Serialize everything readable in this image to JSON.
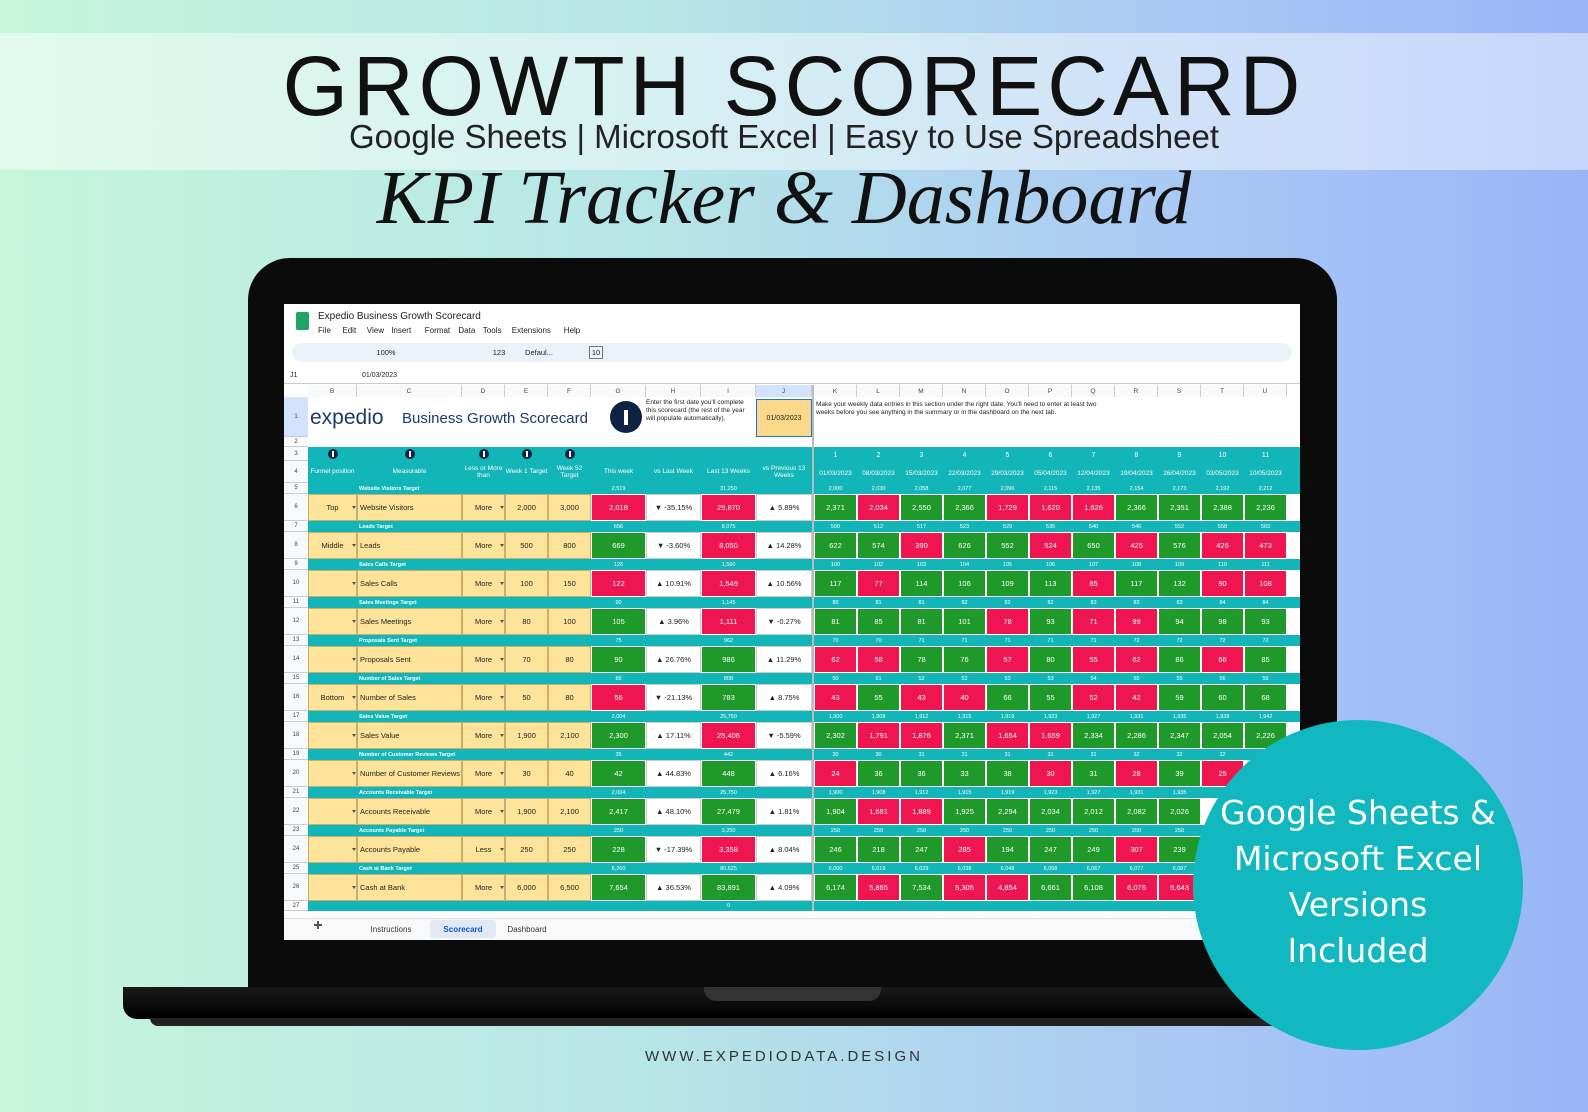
{
  "banner": {
    "title": "GROWTH SCORECARD",
    "subtitle": "Google Sheets | Microsoft Excel | Easy to Use Spreadsheet",
    "script_title": "KPI Tracker & Dashboard",
    "badge_lines": [
      "Google Sheets &",
      "Microsoft Excel",
      "Versions",
      "Included"
    ],
    "footer": "WWW.EXPEDIODATA.DESIGN"
  },
  "sheet": {
    "doc_title": "Expedio Business Growth Scorecard",
    "menu": [
      "File",
      "Edit",
      "View",
      "Insert",
      "Format",
      "Data",
      "Tools",
      "Extensions",
      "Help"
    ],
    "toolbar": [
      "100%",
      "123",
      "Defaul...",
      "10"
    ],
    "name_box": "J1",
    "formula": "01/03/2023",
    "column_letters": [
      "B",
      "C",
      "D",
      "E",
      "F",
      "G",
      "H",
      "I",
      "J",
      "K",
      "L",
      "M",
      "N",
      "O",
      "P",
      "Q",
      "R",
      "S",
      "T",
      "U"
    ],
    "row_numbers": [
      "1",
      "2",
      "3",
      "4",
      "5",
      "6",
      "7",
      "8",
      "9",
      "10",
      "11",
      "12",
      "13",
      "14",
      "15",
      "16",
      "17",
      "18",
      "19",
      "20",
      "21",
      "22",
      "23",
      "24",
      "25",
      "26",
      "27"
    ],
    "logo_text": "expedio",
    "logo_title": "Business Growth Scorecard",
    "info_note": "Enter the first date you'll complete this scorecard (the rest of the year will populate automatically).",
    "start_date": "01/03/2023",
    "entry_note": "Make your weekly data entries in this section under the right date. You'll need to enter at least two weeks before you see anything in the summary or in the dashboard on the next tab.",
    "headers": [
      "Funnel position",
      "Measurable",
      "Less or More than",
      "Week 1 Target",
      "Week 52 Target",
      "This week",
      "vs Last Week",
      "Last 13 Weeks",
      "vs Previous 13 Weeks"
    ],
    "week_numbers": [
      "1",
      "2",
      "3",
      "4",
      "5",
      "6",
      "7",
      "8",
      "9",
      "10",
      "11"
    ],
    "dates": [
      "01/03/2023",
      "08/03/2023",
      "15/03/2023",
      "22/03/2023",
      "29/03/2023",
      "05/04/2023",
      "12/04/2023",
      "19/04/2023",
      "26/04/2023",
      "03/05/2023",
      "10/05/2023"
    ],
    "rows": [
      {
        "funnel": "Top",
        "measurable": "Website Visitors",
        "direction": "More",
        "week1": "2,000",
        "week52": "3,000",
        "this_week": "2,018",
        "this_week_color": "#ef1550",
        "vs_last": "▼ -35.15%",
        "last13": "29,870",
        "last13_color": "#ef1550",
        "vs_prev13": "▲ 5.89%",
        "target_label": "Website Visitors Target",
        "this_week_target": "2,519",
        "last13_target": "31,250",
        "weeks": [
          "2,371",
          "2,034",
          "2,550",
          "2,366",
          "1,729",
          "1,620",
          "1,626",
          "2,366",
          "2,351",
          "2,388",
          "2,236"
        ],
        "week_colors": [
          "#1f9a2a",
          "#ef1550",
          "#1f9a2a",
          "#1f9a2a",
          "#ef1550",
          "#ef1550",
          "#ef1550",
          "#1f9a2a",
          "#1f9a2a",
          "#1f9a2a",
          "#1f9a2a"
        ],
        "week_targets": [
          "2,000",
          "2,030",
          "2,058",
          "2,077",
          "2,096",
          "2,115",
          "2,135",
          "2,154",
          "2,173",
          "2,192",
          "2,212"
        ]
      },
      {
        "funnel": "Middle",
        "measurable": "Leads",
        "direction": "More",
        "week1": "500",
        "week52": "800",
        "this_week": "669",
        "this_week_color": "#1f9a2a",
        "vs_last": "▼ -3.60%",
        "last13": "8,050",
        "last13_color": "#ef1550",
        "vs_prev13": "▲ 14.28%",
        "target_label": "Leads Target",
        "this_week_target": "656",
        "last13_target": "8,075",
        "weeks": [
          "622",
          "574",
          "390",
          "626",
          "552",
          "524",
          "650",
          "425",
          "576",
          "426",
          "473"
        ],
        "week_colors": [
          "#1f9a2a",
          "#1f9a2a",
          "#ef1550",
          "#1f9a2a",
          "#1f9a2a",
          "#ef1550",
          "#1f9a2a",
          "#ef1550",
          "#1f9a2a",
          "#ef1550",
          "#ef1550"
        ],
        "week_targets": [
          "500",
          "512",
          "517",
          "523",
          "529",
          "535",
          "540",
          "546",
          "552",
          "558",
          "563"
        ]
      },
      {
        "measurable": "Sales Calls",
        "direction": "More",
        "week1": "100",
        "week52": "150",
        "this_week": "122",
        "this_week_color": "#ef1550",
        "vs_last": "▲ 10.91%",
        "last13": "1,549",
        "last13_color": "#ef1550",
        "vs_prev13": "▲ 10.56%",
        "target_label": "Sales Calls Target",
        "this_week_target": "126",
        "last13_target": "1,560",
        "weeks": [
          "117",
          "77",
          "114",
          "106",
          "109",
          "113",
          "85",
          "117",
          "132",
          "90",
          "108"
        ],
        "week_colors": [
          "#1f9a2a",
          "#ef1550",
          "#1f9a2a",
          "#1f9a2a",
          "#1f9a2a",
          "#1f9a2a",
          "#ef1550",
          "#1f9a2a",
          "#1f9a2a",
          "#ef1550",
          "#ef1550"
        ],
        "week_targets": [
          "100",
          "102",
          "103",
          "104",
          "105",
          "106",
          "107",
          "108",
          "109",
          "110",
          "111"
        ]
      },
      {
        "measurable": "Sales Meetings",
        "direction": "More",
        "week1": "80",
        "week52": "100",
        "this_week": "105",
        "this_week_color": "#1f9a2a",
        "vs_last": "▲ 3.96%",
        "last13": "1,111",
        "last13_color": "#ef1550",
        "vs_prev13": "▼ -0.27%",
        "target_label": "Sales Meetings Target",
        "this_week_target": "90",
        "last13_target": "1,145",
        "weeks": [
          "81",
          "85",
          "81",
          "101",
          "78",
          "93",
          "71",
          "99",
          "94",
          "98",
          "93"
        ],
        "week_colors": [
          "#1f9a2a",
          "#1f9a2a",
          "#1f9a2a",
          "#1f9a2a",
          "#ef1550",
          "#1f9a2a",
          "#ef1550",
          "#ef1550",
          "#1f9a2a",
          "#1f9a2a",
          "#1f9a2a"
        ],
        "week_targets": [
          "80",
          "81",
          "81",
          "82",
          "82",
          "82",
          "83",
          "83",
          "83",
          "84",
          "84"
        ]
      },
      {
        "measurable": "Proposals Sent",
        "direction": "More",
        "week1": "70",
        "week52": "80",
        "this_week": "90",
        "this_week_color": "#1f9a2a",
        "vs_last": "▲ 26.76%",
        "last13": "986",
        "last13_color": "#1f9a2a",
        "vs_prev13": "▲ 11.29%",
        "target_label": "Proposals Sent Target",
        "this_week_target": "75",
        "last13_target": "962",
        "weeks": [
          "62",
          "58",
          "78",
          "76",
          "57",
          "80",
          "55",
          "62",
          "86",
          "66",
          "85"
        ],
        "week_colors": [
          "#ef1550",
          "#ef1550",
          "#1f9a2a",
          "#1f9a2a",
          "#ef1550",
          "#1f9a2a",
          "#ef1550",
          "#ef1550",
          "#1f9a2a",
          "#ef1550",
          "#1f9a2a"
        ],
        "week_targets": [
          "70",
          "70",
          "71",
          "71",
          "71",
          "71",
          "71",
          "72",
          "72",
          "72",
          "72"
        ]
      },
      {
        "funnel": "Bottom",
        "measurable": "Number of Sales",
        "direction": "More",
        "week1": "50",
        "week52": "80",
        "this_week": "56",
        "this_week_color": "#ef1550",
        "vs_last": "▼ -21.13%",
        "last13": "783",
        "last13_color": "#1f9a2a",
        "vs_prev13": "▲ 8.75%",
        "target_label": "Number of Sales Target",
        "this_week_target": "66",
        "last13_target": "808",
        "weeks": [
          "43",
          "55",
          "43",
          "40",
          "66",
          "55",
          "52",
          "42",
          "59",
          "60",
          "68"
        ],
        "week_colors": [
          "#ef1550",
          "#1f9a2a",
          "#ef1550",
          "#ef1550",
          "#1f9a2a",
          "#1f9a2a",
          "#ef1550",
          "#ef1550",
          "#1f9a2a",
          "#1f9a2a",
          "#1f9a2a"
        ],
        "week_targets": [
          "50",
          "51",
          "52",
          "52",
          "53",
          "53",
          "54",
          "55",
          "55",
          "56",
          "56"
        ]
      },
      {
        "measurable": "Sales Value",
        "direction": "More",
        "week1": "1,900",
        "week52": "2,100",
        "this_week": "2,300",
        "this_week_color": "#1f9a2a",
        "vs_last": "▲ 17.11%",
        "last13": "25,406",
        "last13_color": "#ef1550",
        "vs_prev13": "▼ -5.59%",
        "target_label": "Sales Value Target",
        "this_week_target": "2,004",
        "last13_target": "25,750",
        "weeks": [
          "2,302",
          "1,791",
          "1,876",
          "2,371",
          "1,654",
          "1,659",
          "2,334",
          "2,286",
          "2,347",
          "2,054",
          "2,226"
        ],
        "week_colors": [
          "#1f9a2a",
          "#ef1550",
          "#ef1550",
          "#1f9a2a",
          "#ef1550",
          "#ef1550",
          "#1f9a2a",
          "#1f9a2a",
          "#1f9a2a",
          "#1f9a2a",
          "#1f9a2a"
        ],
        "week_targets": [
          "1,900",
          "1,908",
          "1,912",
          "1,915",
          "1,919",
          "1,923",
          "1,927",
          "1,931",
          "1,935",
          "1,938",
          "1,942"
        ]
      },
      {
        "measurable": "Number of Customer Reviews",
        "direction": "More",
        "week1": "30",
        "week52": "40",
        "this_week": "42",
        "this_week_color": "#1f9a2a",
        "vs_last": "▲ 44.83%",
        "last13": "448",
        "last13_color": "#1f9a2a",
        "vs_prev13": "▲ 6.16%",
        "target_label": "Number of Customer Reviews Target",
        "this_week_target": "35",
        "last13_target": "442",
        "weeks": [
          "24",
          "36",
          "36",
          "33",
          "38",
          "30",
          "31",
          "28",
          "39",
          "25"
        ],
        "week_colors": [
          "#ef1550",
          "#1f9a2a",
          "#1f9a2a",
          "#1f9a2a",
          "#1f9a2a",
          "#ef1550",
          "#1f9a2a",
          "#ef1550",
          "#1f9a2a",
          "#ef1550"
        ],
        "week_targets": [
          "30",
          "30",
          "31",
          "31",
          "31",
          "31",
          "31",
          "32",
          "32",
          "32"
        ]
      },
      {
        "measurable": "Accounts Receivable",
        "direction": "More",
        "week1": "1,900",
        "week52": "2,100",
        "this_week": "2,417",
        "this_week_color": "#1f9a2a",
        "vs_last": "▲ 48.10%",
        "last13": "27,479",
        "last13_color": "#1f9a2a",
        "vs_prev13": "▲ 1.81%",
        "target_label": "Accounts Receivable Target",
        "this_week_target": "2,004",
        "last13_target": "25,750",
        "weeks": [
          "1,904",
          "1,681",
          "1,889",
          "1,925",
          "2,294",
          "2,034",
          "2,012",
          "2,082",
          "2,026"
        ],
        "week_colors": [
          "#1f9a2a",
          "#ef1550",
          "#ef1550",
          "#1f9a2a",
          "#1f9a2a",
          "#1f9a2a",
          "#1f9a2a",
          "#1f9a2a",
          "#1f9a2a"
        ],
        "week_targets": [
          "1,900",
          "1,908",
          "1,912",
          "1,915",
          "1,919",
          "1,923",
          "1,927",
          "1,931",
          "1,935"
        ]
      },
      {
        "measurable": "Accounts Payable",
        "direction": "Less",
        "week1": "250",
        "week52": "250",
        "this_week": "228",
        "this_week_color": "#1f9a2a",
        "vs_last": "▼ -17.39%",
        "last13": "3,358",
        "last13_color": "#ef1550",
        "vs_prev13": "▲ 8.04%",
        "target_label": "Accounts Payable Target",
        "this_week_target": "250",
        "last13_target": "3,250",
        "weeks": [
          "246",
          "218",
          "247",
          "285",
          "194",
          "247",
          "249",
          "307",
          "239"
        ],
        "week_colors": [
          "#1f9a2a",
          "#1f9a2a",
          "#1f9a2a",
          "#ef1550",
          "#1f9a2a",
          "#1f9a2a",
          "#1f9a2a",
          "#ef1550",
          "#1f9a2a"
        ],
        "week_targets": [
          "250",
          "250",
          "250",
          "250",
          "250",
          "250",
          "250",
          "250",
          "250"
        ]
      },
      {
        "measurable": "Cash at Bank",
        "direction": "More",
        "week1": "6,000",
        "week52": "6,500",
        "this_week": "7,654",
        "this_week_color": "#1f9a2a",
        "vs_last": "▲ 36.53%",
        "last13": "83,891",
        "last13_color": "#1f9a2a",
        "vs_prev13": "▲ 4.09%",
        "target_label": "Cash at Bank Target",
        "this_week_target": "6,260",
        "last13_target": "80,625",
        "weeks": [
          "6,174",
          "5,865",
          "7,534",
          "5,305",
          "4,854",
          "6,661",
          "6,108",
          "6,076",
          "5,643"
        ],
        "week_colors": [
          "#1f9a2a",
          "#ef1550",
          "#1f9a2a",
          "#ef1550",
          "#ef1550",
          "#1f9a2a",
          "#1f9a2a",
          "#ef1550",
          "#ef1550"
        ],
        "week_targets": [
          "6,000",
          "6,019",
          "6,029",
          "6,038",
          "6,048",
          "6,058",
          "6,067",
          "6,077",
          "6,087"
        ]
      }
    ],
    "footer_total": "0",
    "tabs": [
      "Instructions",
      "Scorecard",
      "Dashboard"
    ]
  }
}
